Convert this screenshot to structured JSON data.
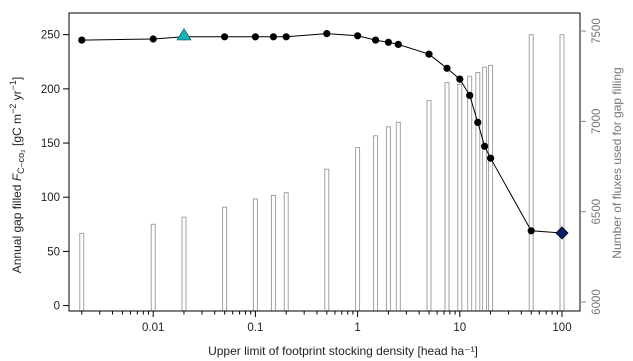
{
  "chart_data": {
    "type": "line",
    "xlabel": "Upper limit of footprint stocking density [head ha⁻¹]",
    "ylabel": {
      "prefix": "Annual gap filled ",
      "symbol": "F",
      "subscript": "C–co₂",
      "units_open": " [gC m",
      "sup1": "−2",
      "units_mid": " yr",
      "sup2": "−1",
      "units_close": "]"
    },
    "y2label": "Number of fluxes used for gap filling",
    "xscale": "log",
    "xlim": [
      0.0015,
      150
    ],
    "ylim": [
      -5,
      270
    ],
    "y2lim": [
      5950,
      7600
    ],
    "x_ticks": [
      {
        "value": 0.01,
        "label": "0.01"
      },
      {
        "value": 0.1,
        "label": "0.1"
      },
      {
        "value": 1,
        "label": "1"
      },
      {
        "value": 10,
        "label": "10"
      },
      {
        "value": 100,
        "label": "100"
      }
    ],
    "y_ticks": [
      0,
      50,
      100,
      150,
      200,
      250
    ],
    "y2_ticks": [
      6000,
      6500,
      7000,
      7500
    ],
    "grid": false,
    "series": [
      {
        "kind": "line",
        "color": "#000000",
        "x": [
          0.002,
          0.01,
          0.02,
          0.05,
          0.1,
          0.15,
          0.2,
          0.5,
          1,
          1.5,
          2,
          2.5,
          5,
          7.5,
          10,
          12.5,
          15,
          17.5,
          20,
          50,
          100
        ],
        "y": [
          245,
          246,
          248,
          248,
          248,
          248,
          248,
          251,
          249,
          245,
          243,
          241,
          232,
          219,
          209,
          194,
          169,
          147,
          136,
          69,
          67
        ]
      },
      {
        "kind": "bar",
        "axis": "right",
        "color": "#999999",
        "x": [
          0.002,
          0.01,
          0.02,
          0.05,
          0.1,
          0.15,
          0.2,
          0.5,
          1,
          1.5,
          2,
          2.5,
          5,
          7.5,
          10,
          12.5,
          15,
          17.5,
          20,
          50,
          100
        ],
        "y": [
          6380,
          6430,
          6470,
          6525,
          6570,
          6590,
          6605,
          6735,
          6855,
          6920,
          6970,
          6995,
          7115,
          7215,
          7205,
          7250,
          7270,
          7300,
          7310,
          7480,
          7480
        ]
      }
    ],
    "markers": [
      {
        "x": 0.02,
        "y": 249,
        "shape": "triangle",
        "color": "#1ab0b8"
      },
      {
        "x": 100,
        "y": 67,
        "shape": "diamond",
        "color": "#0a1f6e"
      }
    ]
  }
}
